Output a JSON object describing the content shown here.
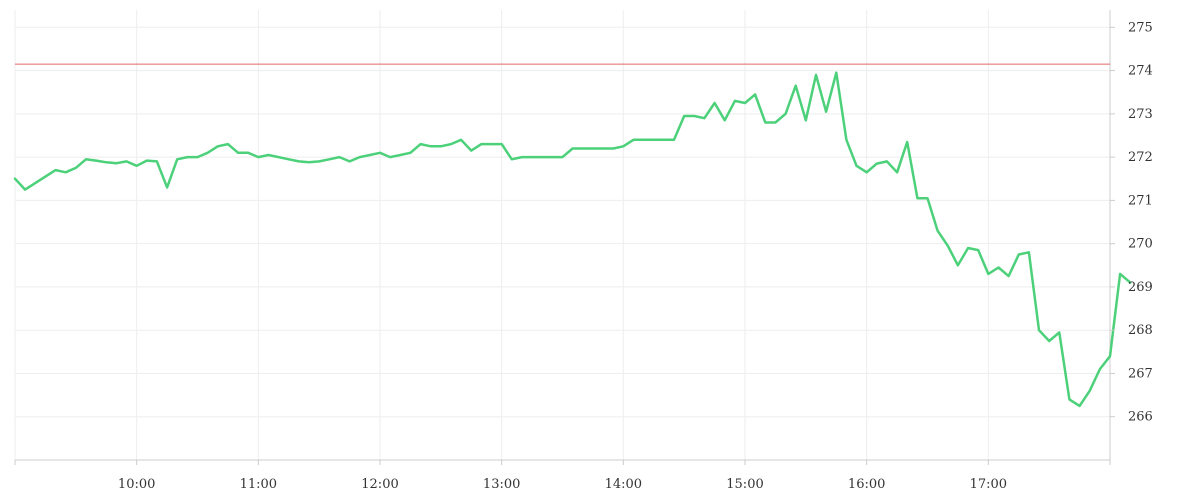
{
  "chart_data": {
    "type": "line",
    "title": "",
    "xlabel": "",
    "ylabel": "",
    "x_unit": "time of day",
    "xlim": [
      "09:00",
      "18:00"
    ],
    "ylim": [
      265,
      275.4
    ],
    "grid": true,
    "reference_line": {
      "value": 274.15,
      "color": "#e06666"
    },
    "x_ticks": [
      "10:00",
      "11:00",
      "12:00",
      "13:00",
      "14:00",
      "15:00",
      "16:00",
      "17:00"
    ],
    "y_ticks": [
      266,
      267,
      268,
      269,
      270,
      271,
      272,
      273,
      274,
      275
    ],
    "series": [
      {
        "color": "#4cd17a",
        "points": [
          [
            "09:00",
            271.5
          ],
          [
            "09:05",
            271.25
          ],
          [
            "09:10",
            271.4
          ],
          [
            "09:15",
            271.55
          ],
          [
            "09:20",
            271.7
          ],
          [
            "09:25",
            271.65
          ],
          [
            "09:30",
            271.75
          ],
          [
            "09:35",
            271.95
          ],
          [
            "09:40",
            271.92
          ],
          [
            "09:45",
            271.88
          ],
          [
            "09:50",
            271.86
          ],
          [
            "09:55",
            271.9
          ],
          [
            "10:00",
            271.8
          ],
          [
            "10:05",
            271.92
          ],
          [
            "10:10",
            271.9
          ],
          [
            "10:15",
            271.3
          ],
          [
            "10:20",
            271.95
          ],
          [
            "10:25",
            272.0
          ],
          [
            "10:30",
            272.0
          ],
          [
            "10:35",
            272.1
          ],
          [
            "10:40",
            272.25
          ],
          [
            "10:45",
            272.3
          ],
          [
            "10:50",
            272.1
          ],
          [
            "10:55",
            272.1
          ],
          [
            "11:00",
            272.0
          ],
          [
            "11:05",
            272.05
          ],
          [
            "11:10",
            272.0
          ],
          [
            "11:15",
            271.95
          ],
          [
            "11:20",
            271.9
          ],
          [
            "11:25",
            271.88
          ],
          [
            "11:30",
            271.9
          ],
          [
            "11:35",
            271.95
          ],
          [
            "11:40",
            272.0
          ],
          [
            "11:45",
            271.9
          ],
          [
            "11:50",
            272.0
          ],
          [
            "11:55",
            272.05
          ],
          [
            "12:00",
            272.1
          ],
          [
            "12:05",
            272.0
          ],
          [
            "12:10",
            272.05
          ],
          [
            "12:15",
            272.1
          ],
          [
            "12:20",
            272.3
          ],
          [
            "12:25",
            272.25
          ],
          [
            "12:30",
            272.25
          ],
          [
            "12:35",
            272.3
          ],
          [
            "12:40",
            272.4
          ],
          [
            "12:45",
            272.15
          ],
          [
            "12:50",
            272.3
          ],
          [
            "12:55",
            272.3
          ],
          [
            "13:00",
            272.3
          ],
          [
            "13:05",
            271.95
          ],
          [
            "13:10",
            272.0
          ],
          [
            "13:15",
            272.0
          ],
          [
            "13:20",
            272.0
          ],
          [
            "13:25",
            272.0
          ],
          [
            "13:30",
            272.0
          ],
          [
            "13:35",
            272.2
          ],
          [
            "13:40",
            272.2
          ],
          [
            "13:45",
            272.2
          ],
          [
            "13:50",
            272.2
          ],
          [
            "13:55",
            272.2
          ],
          [
            "14:00",
            272.25
          ],
          [
            "14:05",
            272.4
          ],
          [
            "14:10",
            272.4
          ],
          [
            "14:15",
            272.4
          ],
          [
            "14:20",
            272.4
          ],
          [
            "14:25",
            272.4
          ],
          [
            "14:30",
            272.95
          ],
          [
            "14:35",
            272.95
          ],
          [
            "14:40",
            272.9
          ],
          [
            "14:45",
            273.25
          ],
          [
            "14:50",
            272.85
          ],
          [
            "14:55",
            273.3
          ],
          [
            "15:00",
            273.25
          ],
          [
            "15:05",
            273.45
          ],
          [
            "15:10",
            272.8
          ],
          [
            "15:15",
            272.8
          ],
          [
            "15:20",
            273.0
          ],
          [
            "15:25",
            273.65
          ],
          [
            "15:30",
            272.85
          ],
          [
            "15:35",
            273.9
          ],
          [
            "15:40",
            273.05
          ],
          [
            "15:45",
            273.95
          ],
          [
            "15:50",
            272.4
          ],
          [
            "15:55",
            271.8
          ],
          [
            "16:00",
            271.65
          ],
          [
            "16:05",
            271.85
          ],
          [
            "16:10",
            271.9
          ],
          [
            "16:15",
            271.65
          ],
          [
            "16:20",
            272.35
          ],
          [
            "16:25",
            271.05
          ],
          [
            "16:30",
            271.05
          ],
          [
            "16:35",
            270.3
          ],
          [
            "16:40",
            269.95
          ],
          [
            "16:45",
            269.5
          ],
          [
            "16:50",
            269.9
          ],
          [
            "16:55",
            269.85
          ],
          [
            "17:00",
            269.3
          ],
          [
            "17:05",
            269.45
          ],
          [
            "17:10",
            269.25
          ],
          [
            "17:15",
            269.75
          ],
          [
            "17:20",
            269.8
          ],
          [
            "17:25",
            268.0
          ],
          [
            "17:30",
            267.75
          ],
          [
            "17:35",
            267.95
          ],
          [
            "17:40",
            266.4
          ],
          [
            "17:45",
            266.25
          ],
          [
            "17:50",
            266.6
          ],
          [
            "17:55",
            267.1
          ],
          [
            "18:00",
            267.4
          ],
          [
            "18:05",
            269.3
          ],
          [
            "18:10",
            269.1
          ]
        ]
      }
    ]
  }
}
